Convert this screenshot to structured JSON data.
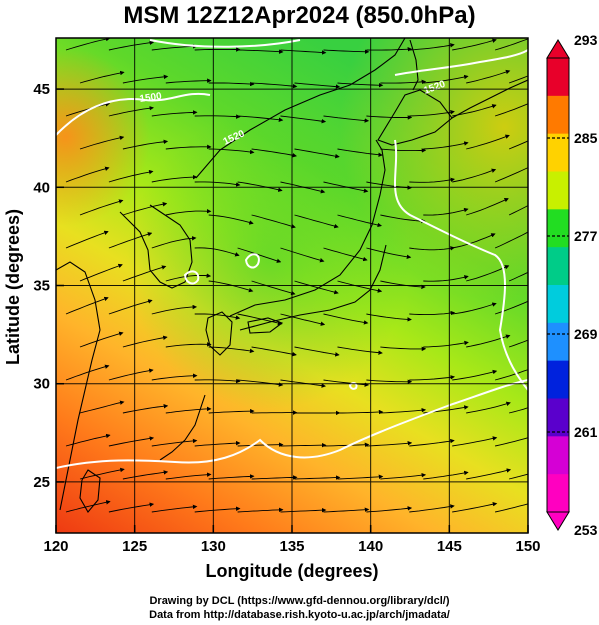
{
  "title": "MSM 12Z12Apr2024 (850.0hPa)",
  "map": {
    "xlabel": "Longitude (degrees)",
    "ylabel": "Latitude  (degrees)",
    "x_ticks": [
      "120",
      "125",
      "130",
      "135",
      "140",
      "145",
      "150"
    ],
    "y_ticks": [
      "25",
      "30",
      "35",
      "40",
      "45"
    ],
    "xlim": [
      120,
      150
    ],
    "ylim": [
      22.4,
      47.6
    ],
    "contour_labels": [
      "1500",
      "1520",
      "1520"
    ]
  },
  "colorbar": {
    "labels": [
      "293",
      "285",
      "277",
      "269",
      "261",
      "253"
    ],
    "colors": [
      "#e8002a",
      "#ff7a00",
      "#ffd200",
      "#c8f000",
      "#22dd22",
      "#00cc88",
      "#00ccdd",
      "#1e90ff",
      "#0022dd",
      "#5a00cc",
      "#d500d5",
      "#ff00c0"
    ]
  },
  "credits": {
    "line1": "Drawing by DCL (https://www.gfd-dennou.org/library/dcl/)",
    "line2": "Data from http://database.rish.kyoto-u.ac.jp/arch/jmadata/"
  }
}
